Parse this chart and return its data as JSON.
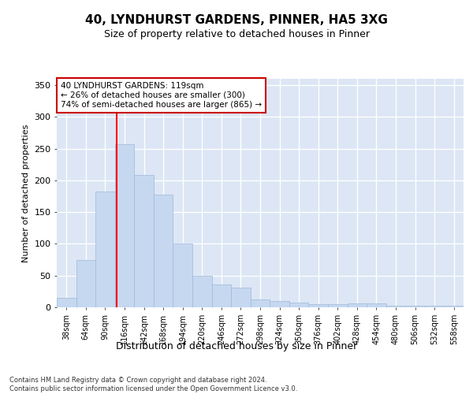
{
  "title1": "40, LYNDHURST GARDENS, PINNER, HA5 3XG",
  "title2": "Size of property relative to detached houses in Pinner",
  "xlabel": "Distribution of detached houses by size in Pinner",
  "ylabel": "Number of detached properties",
  "bin_labels": [
    "38sqm",
    "64sqm",
    "90sqm",
    "116sqm",
    "142sqm",
    "168sqm",
    "194sqm",
    "220sqm",
    "246sqm",
    "272sqm",
    "298sqm",
    "324sqm",
    "350sqm",
    "376sqm",
    "402sqm",
    "428sqm",
    "454sqm",
    "480sqm",
    "506sqm",
    "532sqm",
    "558sqm"
  ],
  "bar_heights": [
    15,
    75,
    183,
    257,
    208,
    178,
    100,
    50,
    36,
    31,
    13,
    10,
    8,
    5,
    5,
    6,
    6,
    3,
    2,
    2,
    2
  ],
  "bar_color": "#c5d8f0",
  "bar_edge_color": "#a0b8d8",
  "background_color": "#dce6f5",
  "grid_color": "#ffffff",
  "red_line_bin_index": 3.077,
  "annotation_text": "40 LYNDHURST GARDENS: 119sqm\n← 26% of detached houses are smaller (300)\n74% of semi-detached houses are larger (865) →",
  "annotation_box_color": "#ffffff",
  "annotation_box_edge_color": "#cc0000",
  "footnote": "Contains HM Land Registry data © Crown copyright and database right 2024.\nContains public sector information licensed under the Open Government Licence v3.0.",
  "fig_bg_color": "#ffffff",
  "ylim": [
    0,
    360
  ],
  "yticks": [
    0,
    50,
    100,
    150,
    200,
    250,
    300,
    350
  ]
}
